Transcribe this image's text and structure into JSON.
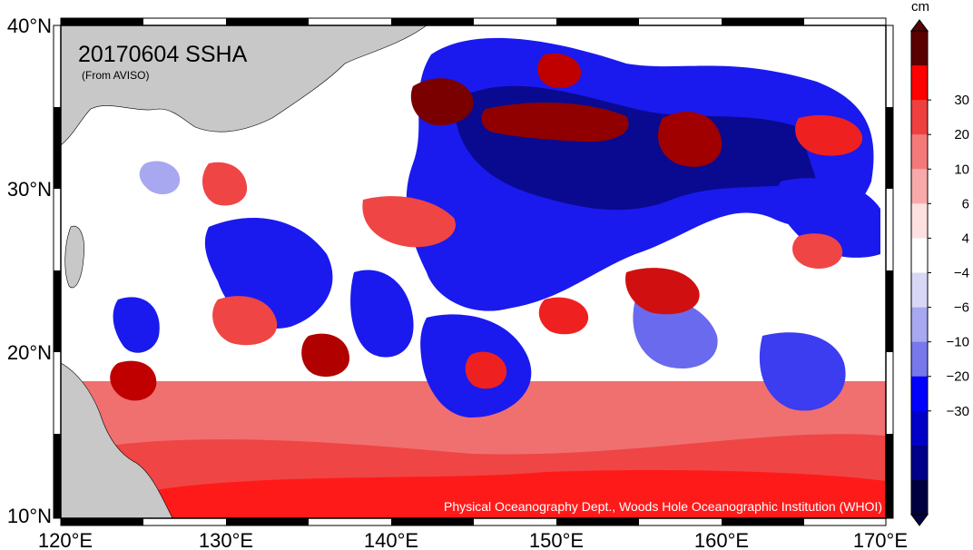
{
  "title": "20170604 SSHA",
  "source_note": "(From AVISO)",
  "credit": "Physical Oceanography Dept., Woods Hole Oceanographic Institution (WHOI)",
  "colorbar": {
    "unit": "cm",
    "tick_labels": [
      "30",
      "20",
      "10",
      "6",
      "4",
      "−4",
      "−6",
      "−10",
      "−20",
      "−30"
    ],
    "band_colors": [
      "#5a0000",
      "#ff0000",
      "#ef4040",
      "#f47a7a",
      "#f8aaaa",
      "#fde0e0",
      "#ffffff",
      "#d8d8f6",
      "#a8a8f0",
      "#7878ea",
      "#0000ff",
      "#0000c8",
      "#000088",
      "#000040"
    ]
  },
  "axes": {
    "x_ticks": [
      "120°E",
      "130°E",
      "140°E",
      "150°E",
      "160°E",
      "170°E"
    ],
    "y_ticks": [
      "40°N",
      "30°N",
      "20°N",
      "10°N"
    ]
  },
  "colors": {
    "land": "#c8c8c8",
    "positive": "#ef4a4a",
    "negative": "#1a1aee"
  }
}
